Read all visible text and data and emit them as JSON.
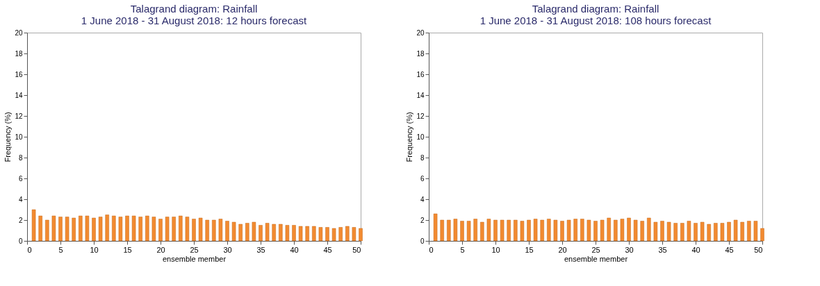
{
  "chart_data": [
    {
      "type": "bar",
      "title": [
        "Talagrand diagram: Rainfall",
        "1 June 2018 - 31 August 2018: 12 hours forecast"
      ],
      "xlabel": "ensemble member",
      "ylabel": "Frequency (%)",
      "x": [
        1,
        2,
        3,
        4,
        5,
        6,
        7,
        8,
        9,
        10,
        11,
        12,
        13,
        14,
        15,
        16,
        17,
        18,
        19,
        20,
        21,
        22,
        23,
        24,
        25,
        26,
        27,
        28,
        29,
        30,
        31,
        32,
        33,
        34,
        35,
        36,
        37,
        38,
        39,
        40,
        41,
        42,
        43,
        44,
        45,
        46,
        47,
        48,
        49,
        50
      ],
      "series": [
        {
          "color": "#f28a30",
          "values": [
            3.0,
            2.4,
            2.0,
            2.4,
            2.3,
            2.3,
            2.2,
            2.4,
            2.4,
            2.2,
            2.3,
            2.5,
            2.4,
            2.3,
            2.4,
            2.4,
            2.3,
            2.4,
            2.3,
            2.1,
            2.3,
            2.3,
            2.4,
            2.3,
            2.1,
            2.2,
            2.0,
            2.0,
            2.1,
            1.9,
            1.8,
            1.6,
            1.7,
            1.8,
            1.5,
            1.7,
            1.6,
            1.6,
            1.5,
            1.5,
            1.4,
            1.4,
            1.4,
            1.3,
            1.3,
            1.2,
            1.3,
            1.4,
            1.3,
            1.2
          ]
        }
      ],
      "xlim": [
        0,
        50
      ],
      "xticks": [
        0,
        5,
        10,
        15,
        20,
        25,
        30,
        35,
        40,
        45,
        50
      ],
      "ylim": [
        0,
        20
      ],
      "yticks": [
        0,
        2,
        4,
        6,
        8,
        10,
        12,
        14,
        16,
        18,
        20
      ],
      "grid": false
    },
    {
      "type": "bar",
      "title": [
        "Talagrand diagram: Rainfall",
        "1 June 2018 - 31 August 2018: 108 hours forecast"
      ],
      "xlabel": "ensemble member",
      "ylabel": "Frequency (%)",
      "x": [
        1,
        2,
        3,
        4,
        5,
        6,
        7,
        8,
        9,
        10,
        11,
        12,
        13,
        14,
        15,
        16,
        17,
        18,
        19,
        20,
        21,
        22,
        23,
        24,
        25,
        26,
        27,
        28,
        29,
        30,
        31,
        32,
        33,
        34,
        35,
        36,
        37,
        38,
        39,
        40,
        41,
        42,
        43,
        44,
        45,
        46,
        47,
        48,
        49,
        50
      ],
      "series": [
        {
          "color": "#f28a30",
          "values": [
            2.6,
            2.0,
            2.0,
            2.1,
            1.9,
            1.9,
            2.1,
            1.8,
            2.1,
            2.0,
            2.0,
            2.0,
            2.0,
            1.9,
            2.0,
            2.1,
            2.0,
            2.1,
            2.0,
            1.9,
            2.0,
            2.1,
            2.1,
            2.0,
            1.9,
            2.0,
            2.2,
            2.0,
            2.1,
            2.2,
            2.0,
            1.9,
            2.2,
            1.8,
            1.9,
            1.8,
            1.7,
            1.7,
            1.9,
            1.7,
            1.8,
            1.6,
            1.7,
            1.7,
            1.8,
            2.0,
            1.8,
            1.9,
            1.9,
            1.2
          ]
        }
      ],
      "xlim": [
        0,
        50
      ],
      "xticks": [
        0,
        5,
        10,
        15,
        20,
        25,
        30,
        35,
        40,
        45,
        50
      ],
      "ylim": [
        0,
        20
      ],
      "yticks": [
        0,
        2,
        4,
        6,
        8,
        10,
        12,
        14,
        16,
        18,
        20
      ],
      "grid": false
    }
  ]
}
